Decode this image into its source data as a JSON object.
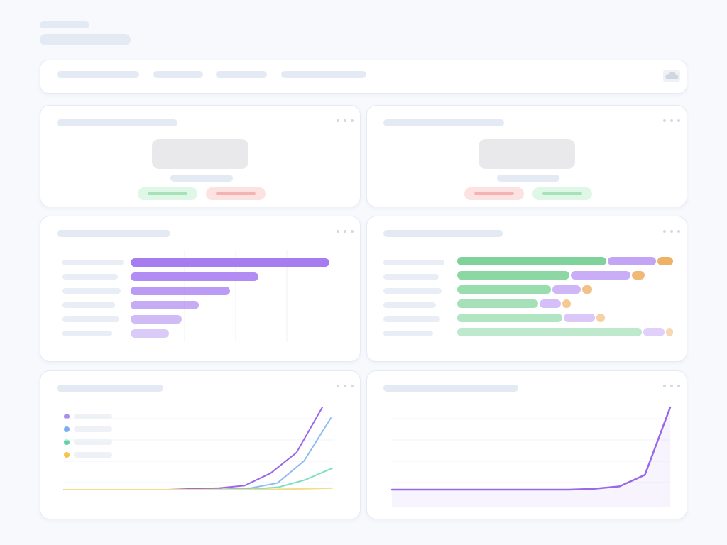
{
  "colors": {
    "purple": "#a67cf0",
    "green": "#7fd39a",
    "orange": "#eeb267",
    "blue": "#7aaef0",
    "teal": "#6fdcb6",
    "yellow": "#f6d96a",
    "positive_pill": "#dff7e6",
    "negative_pill": "#fde2e2"
  },
  "header": {
    "icons": [
      "cloud-icon"
    ]
  },
  "cards": [
    {
      "name": "kpi-card-1",
      "type": "kpi-skeleton",
      "pills": [
        "positive",
        "negative"
      ]
    },
    {
      "name": "kpi-card-2",
      "type": "kpi-skeleton",
      "pills": [
        "negative",
        "positive"
      ]
    },
    {
      "name": "bar-chart-card",
      "type": "horizontal-bar-skeleton"
    },
    {
      "name": "stacked-bar-card",
      "type": "stacked-bar-skeleton"
    },
    {
      "name": "multi-line-card",
      "type": "line-skeleton",
      "legend_items": 4
    },
    {
      "name": "area-chart-card",
      "type": "area-skeleton"
    }
  ],
  "chart_data": [
    {
      "type": "bar",
      "orientation": "horizontal",
      "values": [
        280,
        180,
        140,
        96,
        72,
        54
      ],
      "color": "#a67cf0",
      "grid": true
    },
    {
      "type": "bar",
      "orientation": "horizontal",
      "stacked": true,
      "series": [
        {
          "values": [
            210,
            158,
            132,
            114,
            148,
            260
          ],
          "color": "#7fd39a"
        },
        {
          "values": [
            68,
            84,
            40,
            30,
            44,
            30
          ],
          "color": "#c3a4f5"
        },
        {
          "values": [
            22,
            18,
            14,
            12,
            12,
            10
          ],
          "color": "#eeb267"
        }
      ]
    },
    {
      "type": "line",
      "legend_placement": "top-left",
      "grid": true,
      "series": [
        {
          "color": "#9868e8",
          "values": [
            0,
            0,
            0,
            0,
            0,
            0.01,
            0.02,
            0.05,
            0.2,
            0.45,
            1.0
          ]
        },
        {
          "color": "#8fbaf2",
          "values": [
            0,
            0,
            0,
            0,
            0,
            0,
            0.005,
            0.02,
            0.08,
            0.35,
            0.87
          ]
        },
        {
          "color": "#7fdfbf",
          "values": [
            0,
            0,
            0,
            0,
            0,
            0,
            0,
            0.005,
            0.03,
            0.12,
            0.26
          ]
        },
        {
          "color": "#f3dc8a",
          "values": [
            0,
            0,
            0,
            0,
            0,
            0,
            0,
            0,
            0.005,
            0.01,
            0.02
          ]
        }
      ]
    },
    {
      "type": "area",
      "grid": true,
      "series": [
        {
          "color": "#9868e8",
          "values": [
            0,
            0,
            0,
            0,
            0,
            0,
            0,
            0,
            0.01,
            0.04,
            0.18,
            1.0
          ]
        }
      ]
    }
  ]
}
